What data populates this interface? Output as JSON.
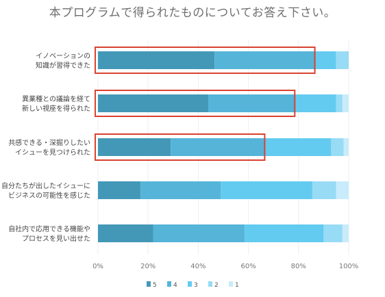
{
  "chart_data": {
    "type": "bar",
    "orientation": "horizontal",
    "stacked": true,
    "title": "本プログラムで得られたものについてお答え下さい。",
    "categories": [
      "イノベーションの\n知識が習得できた",
      "異業種との議論を経て\n新しい視座を得られた",
      "共感できる・深掘りしたい\nイシューを見つけられた",
      "自分たちが出したイシューに\nビジネスの可能性を感じた",
      "自社内で応用できる機能や\nプロセスを見い出せた"
    ],
    "series": [
      {
        "name": "5",
        "color": "#4398b7",
        "values": [
          46.5,
          44,
          29,
          17,
          22
        ]
      },
      {
        "name": "4",
        "color": "#55b4d8",
        "values": [
          40,
          34.5,
          37.5,
          32,
          36.5
        ]
      },
      {
        "name": "3",
        "color": "#64cbf0",
        "values": [
          8.5,
          16.5,
          26.5,
          36.5,
          31.5
        ]
      },
      {
        "name": "2",
        "color": "#98dbf5",
        "values": [
          5,
          2.5,
          5,
          9.5,
          7.5
        ]
      },
      {
        "name": "1",
        "color": "#c8ecfb",
        "values": [
          0,
          2.5,
          2,
          5,
          2.5
        ]
      }
    ],
    "xticks": [
      "0%",
      "20%",
      "40%",
      "60%",
      "80%",
      "100%"
    ],
    "xlim": [
      0,
      100
    ],
    "unit": "%",
    "grid": true,
    "legend_position": "bottom",
    "highlights": [
      {
        "category_index": 0,
        "end": 86.5,
        "color": "#d9412e"
      },
      {
        "category_index": 1,
        "end": 78.5,
        "color": "#d9412e"
      },
      {
        "category_index": 2,
        "end": 66.5,
        "color": "#d9412e"
      }
    ]
  }
}
